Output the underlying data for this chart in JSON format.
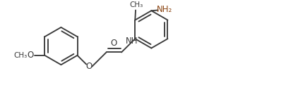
{
  "bg_color": "#ffffff",
  "line_color": "#3a3a3a",
  "o_color": "#3a3a3a",
  "nh_color": "#3a3a3a",
  "nh2_color": "#8B4513",
  "line_width": 1.35,
  "font_size": 8.5,
  "fig_width": 4.06,
  "fig_height": 1.31,
  "dpi": 100,
  "xlim": [
    0,
    10.5
  ],
  "ylim": [
    0,
    3.5
  ]
}
